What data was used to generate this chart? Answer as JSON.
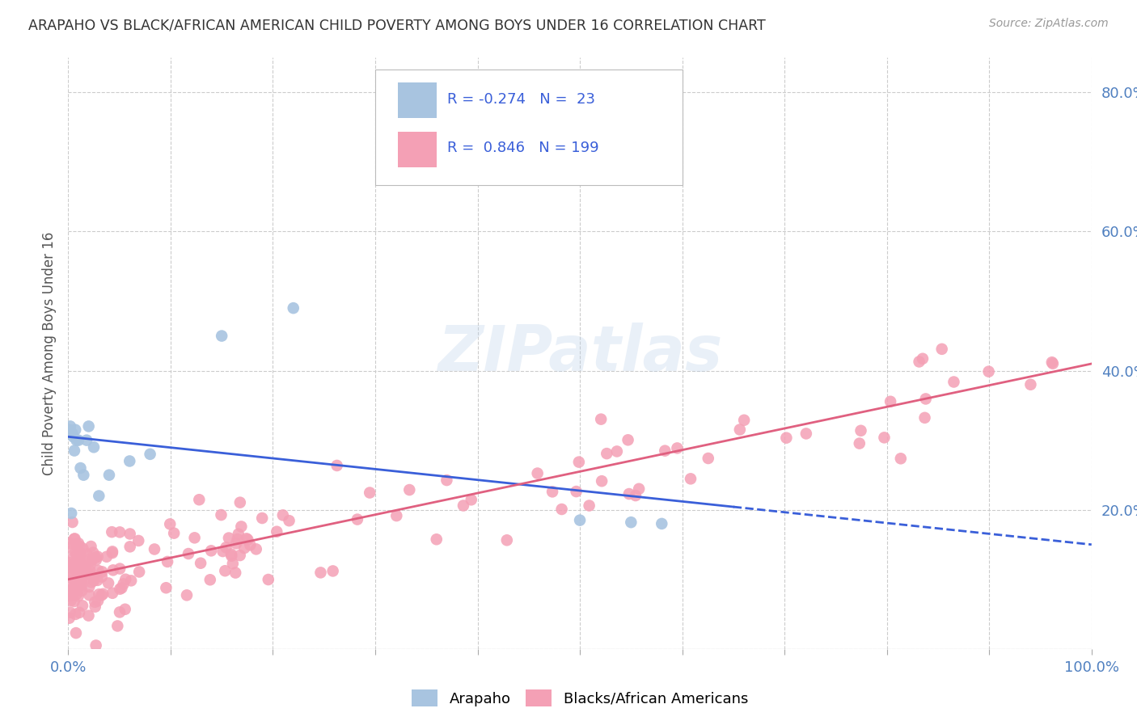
{
  "title": "ARAPAHO VS BLACK/AFRICAN AMERICAN CHILD POVERTY AMONG BOYS UNDER 16 CORRELATION CHART",
  "source": "Source: ZipAtlas.com",
  "ylabel": "Child Poverty Among Boys Under 16",
  "xlim": [
    0,
    1.0
  ],
  "ylim": [
    0,
    0.85
  ],
  "arapaho_color": "#a8c4e0",
  "black_color": "#f4a0b5",
  "arapaho_line_color": "#3a5fd9",
  "black_line_color": "#e06080",
  "watermark": "ZIPatlas",
  "arapaho_intercept": 0.305,
  "arapaho_slope": -0.155,
  "black_intercept": 0.1,
  "black_slope": 0.31,
  "background_color": "#ffffff",
  "grid_color": "#cccccc",
  "tick_color": "#5080c0",
  "legend_text_color": "#3a5fd9",
  "title_color": "#333333",
  "source_color": "#999999",
  "ylabel_color": "#555555"
}
